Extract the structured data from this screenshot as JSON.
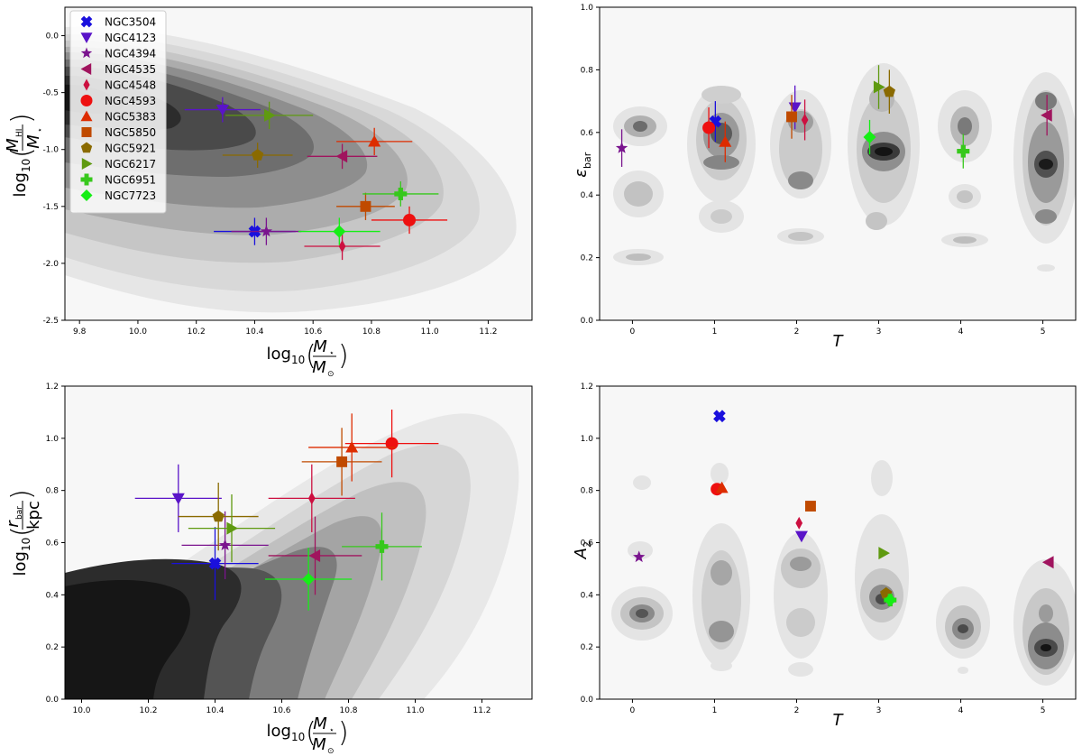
{
  "chart_data": [
    {
      "type": "scatter",
      "panel": "top-left",
      "xlabel": "log10(M*/M⊙)",
      "ylabel": "log10(MHI/M*)",
      "xlim": [
        9.75,
        11.35
      ],
      "ylim": [
        -2.5,
        0.25
      ],
      "xticks": [
        "9.8",
        "10.0",
        "10.2",
        "10.4",
        "10.6",
        "10.8",
        "11.0",
        "11.2"
      ],
      "yticks": [
        "-2.5",
        "-2.0",
        "-1.5",
        "-1.0",
        "-0.5",
        "0.0"
      ],
      "xtick_values": [
        9.8,
        10.0,
        10.2,
        10.4,
        10.6,
        10.8,
        11.0,
        11.2
      ],
      "ytick_values": [
        -2.5,
        -2.0,
        -1.5,
        -1.0,
        -0.5,
        0.0
      ],
      "background": "kde-contours",
      "legend": "top-left",
      "points": [
        {
          "name": "NGC3504",
          "x": 10.4,
          "y": -1.72,
          "xerr": 0.14,
          "yerr": 0.12
        },
        {
          "name": "NGC4123",
          "x": 10.29,
          "y": -0.65,
          "xerr": 0.13,
          "yerr": 0.11
        },
        {
          "name": "NGC4394",
          "x": 10.44,
          "y": -1.72,
          "xerr": 0.12,
          "yerr": 0.12
        },
        {
          "name": "NGC4535",
          "x": 10.7,
          "y": -1.06,
          "xerr": 0.12,
          "yerr": 0.11
        },
        {
          "name": "NGC4548",
          "x": 10.7,
          "y": -1.85,
          "xerr": 0.13,
          "yerr": 0.12
        },
        {
          "name": "NGC4593",
          "x": 10.93,
          "y": -1.62,
          "xerr": 0.13,
          "yerr": 0.12
        },
        {
          "name": "NGC5383",
          "x": 10.81,
          "y": -0.93,
          "xerr": 0.13,
          "yerr": 0.12
        },
        {
          "name": "NGC5850",
          "x": 10.78,
          "y": -1.5,
          "xerr": 0.1,
          "yerr": 0.12
        },
        {
          "name": "NGC5921",
          "x": 10.41,
          "y": -1.05,
          "xerr": 0.12,
          "yerr": 0.11
        },
        {
          "name": "NGC6217",
          "x": 10.45,
          "y": -0.7,
          "xerr": 0.15,
          "yerr": 0.12
        },
        {
          "name": "NGC6951",
          "x": 10.9,
          "y": -1.39,
          "xerr": 0.13,
          "yerr": 0.11
        },
        {
          "name": "NGC7723",
          "x": 10.69,
          "y": -1.72,
          "xerr": 0.14,
          "yerr": 0.12
        }
      ]
    },
    {
      "type": "scatter",
      "panel": "top-right",
      "xlabel": "T",
      "ylabel": "εbar",
      "xlim": [
        -0.4,
        5.4
      ],
      "ylim": [
        0.0,
        1.0
      ],
      "xticks": [
        "0",
        "1",
        "2",
        "3",
        "4",
        "5"
      ],
      "yticks": [
        "0.0",
        "0.2",
        "0.4",
        "0.6",
        "0.8",
        "1.0"
      ],
      "xtick_values": [
        0,
        1,
        2,
        3,
        4,
        5
      ],
      "ytick_values": [
        0.0,
        0.2,
        0.4,
        0.6,
        0.8,
        1.0
      ],
      "background": "kde-contours",
      "points": [
        {
          "name": "NGC3504",
          "x": 1.01,
          "y": 0.635,
          "yerr": 0.065
        },
        {
          "name": "NGC4123",
          "x": 1.98,
          "y": 0.68,
          "yerr": 0.07
        },
        {
          "name": "NGC4394",
          "x": -0.13,
          "y": 0.55,
          "yerr": 0.06
        },
        {
          "name": "NGC4535",
          "x": 5.05,
          "y": 0.655,
          "yerr": 0.065
        },
        {
          "name": "NGC4548",
          "x": 2.1,
          "y": 0.64,
          "yerr": 0.065
        },
        {
          "name": "NGC4593",
          "x": 0.93,
          "y": 0.615,
          "yerr": 0.065
        },
        {
          "name": "NGC5383",
          "x": 1.13,
          "y": 0.57,
          "yerr": 0.065
        },
        {
          "name": "NGC5850",
          "x": 1.94,
          "y": 0.65,
          "yerr": 0.07
        },
        {
          "name": "NGC5921",
          "x": 3.13,
          "y": 0.73,
          "yerr": 0.07
        },
        {
          "name": "NGC6217",
          "x": 3.0,
          "y": 0.745,
          "yerr": 0.07
        },
        {
          "name": "NGC6951",
          "x": 4.03,
          "y": 0.54,
          "yerr": 0.055
        },
        {
          "name": "NGC7723",
          "x": 2.89,
          "y": 0.585,
          "yerr": 0.055
        }
      ]
    },
    {
      "type": "scatter",
      "panel": "bottom-left",
      "xlabel": "log10(M*/M⊙)",
      "ylabel": "log10(rbar/kpc)",
      "xlim": [
        9.95,
        11.35
      ],
      "ylim": [
        0.0,
        1.2
      ],
      "xticks": [
        "10.0",
        "10.2",
        "10.4",
        "10.6",
        "10.8",
        "11.0",
        "11.2"
      ],
      "yticks": [
        "0.0",
        "0.2",
        "0.4",
        "0.6",
        "0.8",
        "1.0",
        "1.2"
      ],
      "xtick_values": [
        10.0,
        10.2,
        10.4,
        10.6,
        10.8,
        11.0,
        11.2
      ],
      "ytick_values": [
        0.0,
        0.2,
        0.4,
        0.6,
        0.8,
        1.0,
        1.2
      ],
      "background": "kde-contours",
      "points": [
        {
          "name": "NGC3504",
          "x": 10.4,
          "y": 0.52,
          "xerr": 0.13,
          "yerr": 0.14
        },
        {
          "name": "NGC4123",
          "x": 10.29,
          "y": 0.77,
          "xerr": 0.13,
          "yerr": 0.13
        },
        {
          "name": "NGC4394",
          "x": 10.43,
          "y": 0.59,
          "xerr": 0.13,
          "yerr": 0.13
        },
        {
          "name": "NGC4535",
          "x": 10.7,
          "y": 0.55,
          "xerr": 0.14,
          "yerr": 0.15
        },
        {
          "name": "NGC4548",
          "x": 10.69,
          "y": 0.77,
          "xerr": 0.13,
          "yerr": 0.13
        },
        {
          "name": "NGC4593",
          "x": 10.93,
          "y": 0.98,
          "xerr": 0.14,
          "yerr": 0.13
        },
        {
          "name": "NGC5383",
          "x": 10.81,
          "y": 0.965,
          "xerr": 0.13,
          "yerr": 0.13
        },
        {
          "name": "NGC5850",
          "x": 10.78,
          "y": 0.91,
          "xerr": 0.12,
          "yerr": 0.13
        },
        {
          "name": "NGC5921",
          "x": 10.41,
          "y": 0.7,
          "xerr": 0.12,
          "yerr": 0.13
        },
        {
          "name": "NGC6217",
          "x": 10.45,
          "y": 0.655,
          "xerr": 0.13,
          "yerr": 0.13
        },
        {
          "name": "NGC6951",
          "x": 10.9,
          "y": 0.585,
          "xerr": 0.12,
          "yerr": 0.13
        },
        {
          "name": "NGC7723",
          "x": 10.68,
          "y": 0.46,
          "xerr": 0.13,
          "yerr": 0.12
        }
      ]
    },
    {
      "type": "scatter",
      "panel": "bottom-right",
      "xlabel": "T",
      "ylabel": "A2",
      "xlim": [
        -0.4,
        5.4
      ],
      "ylim": [
        0.0,
        1.2
      ],
      "xticks": [
        "0",
        "1",
        "2",
        "3",
        "4",
        "5"
      ],
      "yticks": [
        "0.0",
        "0.2",
        "0.4",
        "0.6",
        "0.8",
        "1.0",
        "1.2"
      ],
      "xtick_values": [
        0,
        1,
        2,
        3,
        4,
        5
      ],
      "ytick_values": [
        0.0,
        0.2,
        0.4,
        0.6,
        0.8,
        1.0,
        1.2
      ],
      "background": "kde-contours",
      "points": [
        {
          "name": "NGC3504",
          "x": 1.06,
          "y": 1.085
        },
        {
          "name": "NGC4123",
          "x": 2.06,
          "y": 0.625
        },
        {
          "name": "NGC4394",
          "x": 0.08,
          "y": 0.545
        },
        {
          "name": "NGC4535",
          "x": 5.07,
          "y": 0.525
        },
        {
          "name": "NGC4548",
          "x": 2.03,
          "y": 0.675
        },
        {
          "name": "NGC4593",
          "x": 1.03,
          "y": 0.805
        },
        {
          "name": "NGC5383",
          "x": 1.09,
          "y": 0.81
        },
        {
          "name": "NGC5850",
          "x": 2.17,
          "y": 0.74
        },
        {
          "name": "NGC5921",
          "x": 3.09,
          "y": 0.405
        },
        {
          "name": "NGC6217",
          "x": 3.06,
          "y": 0.56
        },
        {
          "name": "NGC6951",
          "x": 3.14,
          "y": 0.38
        },
        {
          "name": "NGC7723",
          "x": 3.14,
          "y": 0.38
        }
      ]
    }
  ],
  "legend": {
    "entries": [
      {
        "name": "NGC3504",
        "marker": "x-filled",
        "color": "#1a10dd"
      },
      {
        "name": "NGC4123",
        "marker": "triangle-down",
        "color": "#5a14c8"
      },
      {
        "name": "NGC4394",
        "marker": "star",
        "color": "#7a148e"
      },
      {
        "name": "NGC4535",
        "marker": "triangle-left",
        "color": "#a0145e"
      },
      {
        "name": "NGC4548",
        "marker": "thin-diamond",
        "color": "#cc1040"
      },
      {
        "name": "NGC4593",
        "marker": "circle",
        "color": "#ee1010"
      },
      {
        "name": "NGC5383",
        "marker": "triangle-up",
        "color": "#dd2c00"
      },
      {
        "name": "NGC5850",
        "marker": "square",
        "color": "#c04a00"
      },
      {
        "name": "NGC5921",
        "marker": "pentagon",
        "color": "#8a6a00"
      },
      {
        "name": "NGC6217",
        "marker": "triangle-right",
        "color": "#5f9a10"
      },
      {
        "name": "NGC6951",
        "marker": "plus-filled",
        "color": "#37c81c"
      },
      {
        "name": "NGC7723",
        "marker": "diamond",
        "color": "#15ee15"
      }
    ]
  }
}
